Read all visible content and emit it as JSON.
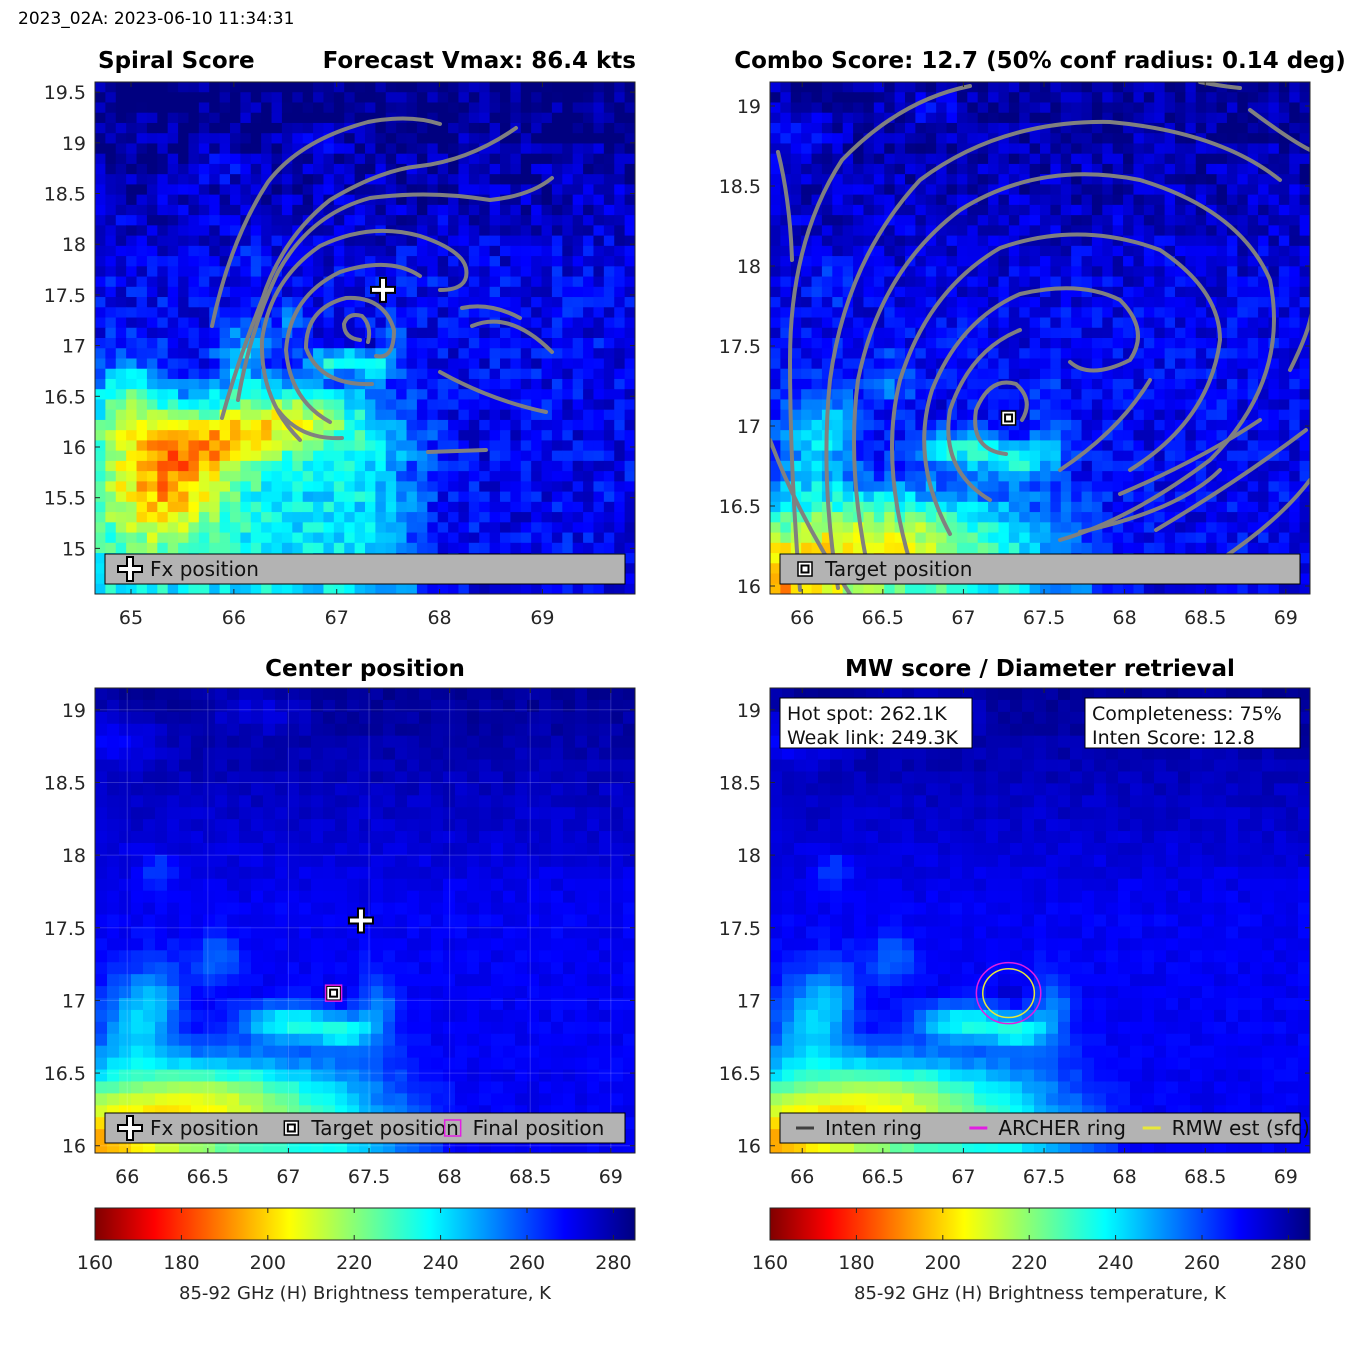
{
  "header": "2023_02A: 2023-06-10 11:34:31",
  "colors": {
    "contour": "#808080",
    "archer_ring": "#e21ee2",
    "rmw_ring": "#e8e83a",
    "inten_ring": "#404040",
    "final_marker": "#e21ee2"
  },
  "colorbars": [
    {
      "min": 160,
      "max": 285,
      "ticks": [
        "160",
        "180",
        "200",
        "220",
        "240",
        "260",
        "280"
      ],
      "label": "85-92 GHz (H) Brightness temperature, K"
    },
    {
      "min": 160,
      "max": 285,
      "ticks": [
        "160",
        "180",
        "200",
        "220",
        "240",
        "260",
        "280"
      ],
      "label": "85-92 GHz (H) Brightness temperature, K"
    }
  ],
  "chart_data": [
    {
      "type": "heatmap",
      "title_left": "Spiral Score",
      "title_right": "Forecast Vmax: 86.4 kts",
      "xlim": [
        64.65,
        69.9
      ],
      "ylim": [
        14.55,
        19.6
      ],
      "xticks": [
        "65",
        "66",
        "67",
        "68",
        "69"
      ],
      "yticks": [
        "15",
        "15.5",
        "16",
        "16.5",
        "17",
        "17.5",
        "18",
        "18.5",
        "19",
        "19.5"
      ],
      "legend": [
        {
          "marker": "plus",
          "label": "Fx position"
        }
      ],
      "markers": [
        {
          "kind": "plus",
          "x": 67.45,
          "y": 17.55
        }
      ],
      "legend_placement": "bottom",
      "grid": false
    },
    {
      "type": "heatmap",
      "title_left": "Combo Score: 12.7  (50% conf radius: 0.14 deg)",
      "xlim": [
        65.8,
        69.15
      ],
      "ylim": [
        15.95,
        19.15
      ],
      "xticks": [
        "66",
        "66.5",
        "67",
        "67.5",
        "68",
        "68.5",
        "69"
      ],
      "yticks": [
        "16",
        "16.5",
        "17",
        "17.5",
        "18",
        "18.5",
        "19"
      ],
      "legend": [
        {
          "marker": "square",
          "label": "Target position"
        }
      ],
      "markers": [
        {
          "kind": "square",
          "x": 67.28,
          "y": 17.05
        }
      ],
      "legend_placement": "bottom",
      "grid": false
    },
    {
      "type": "heatmap",
      "title_left": "Center position",
      "xlim": [
        65.8,
        69.15
      ],
      "ylim": [
        15.95,
        19.15
      ],
      "xticks": [
        "66",
        "66.5",
        "67",
        "67.5",
        "68",
        "68.5",
        "69"
      ],
      "yticks": [
        "16",
        "16.5",
        "17",
        "17.5",
        "18",
        "18.5",
        "19"
      ],
      "legend": [
        {
          "marker": "plus",
          "label": "Fx position"
        },
        {
          "marker": "square",
          "label": "Target position"
        },
        {
          "marker": "magenta-square",
          "label": "Final position"
        }
      ],
      "markers": [
        {
          "kind": "plus",
          "x": 67.45,
          "y": 17.55
        },
        {
          "kind": "square",
          "x": 67.28,
          "y": 17.05
        },
        {
          "kind": "magenta-square",
          "x": 67.28,
          "y": 17.05
        }
      ],
      "legend_placement": "bottom",
      "grid": true
    },
    {
      "type": "heatmap",
      "title_left": "MW score / Diameter retrieval",
      "xlim": [
        65.8,
        69.15
      ],
      "ylim": [
        15.95,
        19.15
      ],
      "xticks": [
        "66",
        "66.5",
        "67",
        "67.5",
        "68",
        "68.5",
        "69"
      ],
      "yticks": [
        "16",
        "16.5",
        "17",
        "17.5",
        "18",
        "18.5",
        "19"
      ],
      "legend": [
        {
          "marker": "line-dark",
          "label": "Inten ring"
        },
        {
          "marker": "line-magenta",
          "label": "ARCHER ring"
        },
        {
          "marker": "line-yellow",
          "label": "RMW est (sfc)"
        }
      ],
      "info_left": [
        "Hot spot: 262.1K",
        "Weak link: 249.3K"
      ],
      "info_right": [
        "Completeness: 75%",
        "Inten Score: 12.8"
      ],
      "rings": [
        {
          "kind": "archer",
          "x": 67.28,
          "y": 17.05,
          "r": 0.2
        },
        {
          "kind": "rmw",
          "x": 67.28,
          "y": 17.05,
          "r": 0.16
        }
      ],
      "legend_placement": "bottom",
      "grid": false
    }
  ]
}
